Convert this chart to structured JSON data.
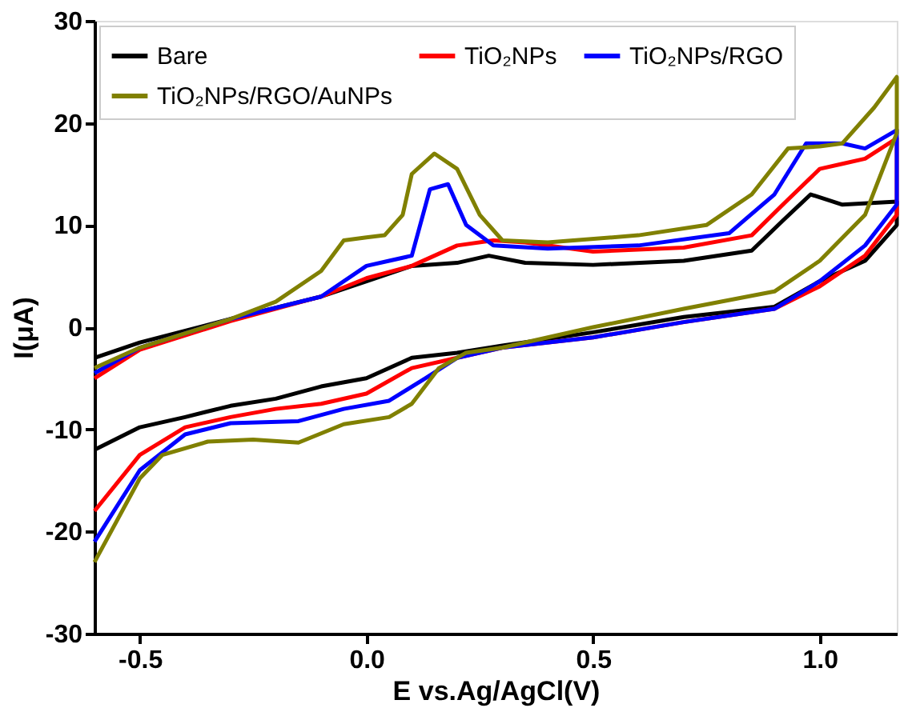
{
  "chart_data": {
    "type": "line",
    "xlabel": "E vs.Ag/AgCl(V)",
    "ylabel": "I(μA)",
    "xlim": [
      -0.6,
      1.17
    ],
    "xticks": [
      {
        "value": -0.5,
        "label": "-0.5"
      },
      {
        "value": 0,
        "label": "0.0"
      },
      {
        "value": 0.5,
        "label": "0.5"
      },
      {
        "value": 1,
        "label": "1.0"
      }
    ],
    "ylim": [
      -30,
      30
    ],
    "yticks": [
      -30,
      -20,
      -10,
      0,
      10,
      20,
      30
    ],
    "grid": false,
    "legend": "top left",
    "marker": "none",
    "line_style": "solid",
    "series": [
      {
        "name": "Bare",
        "color": "#000000",
        "x": [
          -0.6,
          -0.5,
          -0.3,
          -0.1,
          0.0,
          0.1,
          0.2,
          0.27,
          0.35,
          0.5,
          0.7,
          0.85,
          0.92,
          0.98,
          1.05,
          1.17,
          1.17,
          1.1,
          1.0,
          0.9,
          0.7,
          0.5,
          0.3,
          0.2,
          0.1,
          0.0,
          -0.1,
          -0.2,
          -0.3,
          -0.4,
          -0.5,
          -0.6
        ],
        "values": [
          -3,
          -1.5,
          0.8,
          3,
          4.5,
          6,
          6.3,
          7,
          6.3,
          6.1,
          6.5,
          7.5,
          10.5,
          13,
          12,
          12.3,
          10,
          6.5,
          4.5,
          2,
          1,
          -0.5,
          -1.8,
          -2.5,
          -3,
          -5,
          -5.8,
          -7,
          -7.7,
          -8.8,
          -9.8,
          -12
        ]
      },
      {
        "name": "TiO₂NPs",
        "color": "#ff0000",
        "x": [
          -0.6,
          -0.5,
          -0.3,
          -0.1,
          0.0,
          0.1,
          0.2,
          0.28,
          0.35,
          0.5,
          0.7,
          0.85,
          0.93,
          1.0,
          1.05,
          1.1,
          1.17,
          1.17,
          1.1,
          1.0,
          0.9,
          0.7,
          0.5,
          0.3,
          0.2,
          0.1,
          0.0,
          -0.1,
          -0.2,
          -0.3,
          -0.4,
          -0.5,
          -0.6
        ],
        "values": [
          -5,
          -2.2,
          0.6,
          3,
          4.8,
          6,
          8,
          8.5,
          8.3,
          7.4,
          7.8,
          9,
          12.5,
          15.5,
          16,
          16.5,
          18.5,
          11,
          7,
          4,
          1.8,
          0.5,
          -1,
          -2,
          -3,
          -4,
          -6.5,
          -7.5,
          -8,
          -8.8,
          -9.8,
          -12.5,
          -18
        ]
      },
      {
        "name": "TiO₂NPs/RGO",
        "color": "#0000ff",
        "x": [
          -0.6,
          -0.5,
          -0.3,
          -0.1,
          0.0,
          0.05,
          0.1,
          0.14,
          0.18,
          0.22,
          0.28,
          0.4,
          0.6,
          0.8,
          0.9,
          0.97,
          1.05,
          1.1,
          1.17,
          1.17,
          1.1,
          1.0,
          0.9,
          0.7,
          0.5,
          0.3,
          0.2,
          0.13,
          0.05,
          -0.05,
          -0.15,
          -0.3,
          -0.4,
          -0.5,
          -0.6
        ],
        "values": [
          -4.5,
          -2,
          0.8,
          3,
          6,
          6.5,
          7,
          13.5,
          14,
          10,
          8,
          7.7,
          8,
          9.2,
          13,
          18,
          18,
          17.5,
          19.3,
          12,
          8,
          4.5,
          1.8,
          0.5,
          -1,
          -2,
          -3,
          -5,
          -7.2,
          -8,
          -9.2,
          -9.4,
          -10.5,
          -14,
          -21
        ]
      },
      {
        "name": "TiO₂NPs/RGO/AuNPs",
        "color": "#808000",
        "x": [
          -0.6,
          -0.5,
          -0.3,
          -0.2,
          -0.1,
          -0.05,
          0.0,
          0.04,
          0.08,
          0.1,
          0.15,
          0.2,
          0.25,
          0.3,
          0.4,
          0.6,
          0.75,
          0.85,
          0.93,
          1.0,
          1.05,
          1.12,
          1.17,
          1.17,
          1.1,
          1.0,
          0.9,
          0.7,
          0.5,
          0.3,
          0.22,
          0.16,
          0.1,
          0.05,
          -0.05,
          -0.15,
          -0.25,
          -0.35,
          -0.45,
          -0.5,
          -0.6
        ],
        "values": [
          -4,
          -2,
          0.8,
          2.5,
          5.5,
          8.5,
          8.8,
          9,
          11,
          15,
          17,
          15.5,
          11,
          8.5,
          8.3,
          9,
          10,
          13,
          17.5,
          17.7,
          18,
          21.5,
          24.5,
          19,
          11,
          6.5,
          3.5,
          1.8,
          0,
          -2,
          -2.5,
          -4,
          -7.5,
          -8.8,
          -9.5,
          -11.3,
          -11,
          -11.2,
          -12.5,
          -14.8,
          -23
        ]
      }
    ]
  }
}
